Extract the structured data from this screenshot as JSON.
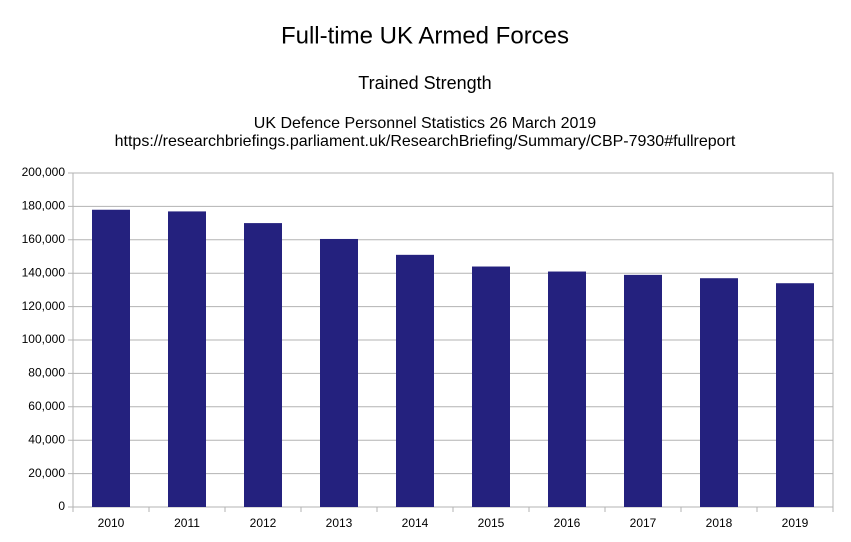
{
  "chart_data": {
    "type": "bar",
    "title": "Full-time UK Armed Forces",
    "subtitle": "Trained Strength",
    "source_lines": [
      "UK Defence Personnel Statistics 26 March 2019",
      "https://researchbriefings.parliament.uk/ResearchBriefing/Summary/CBP-7930#fullreport"
    ],
    "categories": [
      "2010",
      "2011",
      "2012",
      "2013",
      "2014",
      "2015",
      "2016",
      "2017",
      "2018",
      "2019"
    ],
    "values": [
      178000,
      177000,
      170000,
      160500,
      151000,
      144000,
      141000,
      139000,
      137000,
      134000
    ],
    "color": "#24217e",
    "ylim": [
      0,
      200000
    ],
    "yticks": [
      0,
      {
        "value": 20000,
        "label": "20,000"
      },
      {
        "value": 40000,
        "label": "40,000"
      },
      {
        "value": 60000,
        "label": "60,000"
      },
      {
        "value": 80000,
        "label": "80,000"
      },
      {
        "value": 100000,
        "label": "100,000"
      },
      {
        "value": 120000,
        "label": "120,000"
      },
      {
        "value": 140000,
        "label": "140,000"
      },
      {
        "value": 160000,
        "label": "160,000"
      },
      {
        "value": 180000,
        "label": "180,000"
      },
      {
        "value": 200000,
        "label": "200,000"
      }
    ],
    "grid": true
  }
}
